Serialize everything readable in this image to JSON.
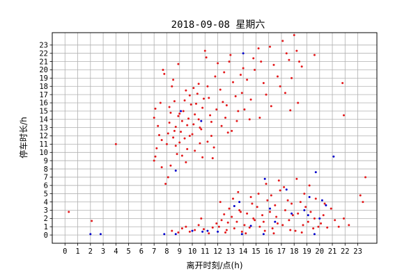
{
  "chart_data": {
    "type": "scatter",
    "title": "2018-09-08 星期六",
    "xlabel": "离开时刻/点(h)",
    "ylabel": "停车时长/h",
    "xlim": [
      -1.0,
      24.5
    ],
    "ylim": [
      -1.0,
      24.5
    ],
    "xticks": [
      0,
      1,
      2,
      3,
      4,
      5,
      6,
      7,
      8,
      9,
      10,
      11,
      12,
      13,
      14,
      15,
      16,
      17,
      18,
      19,
      20,
      21,
      22,
      23
    ],
    "yticks": [
      0,
      1,
      2,
      3,
      4,
      5,
      6,
      7,
      8,
      9,
      10,
      11,
      12,
      13,
      14,
      15,
      16,
      17,
      18,
      19,
      20,
      21,
      22,
      23
    ],
    "grid": true,
    "legend": "none",
    "series": [
      {
        "color": "#e41a1c",
        "points": [
          [
            0.3,
            2.8
          ],
          [
            2.1,
            1.7
          ],
          [
            4.0,
            11.0
          ],
          [
            7.0,
            9.0
          ],
          [
            7.1,
            9.5
          ],
          [
            7.2,
            10.5
          ],
          [
            7.0,
            14.2
          ],
          [
            7.1,
            15.3
          ],
          [
            7.3,
            13.2
          ],
          [
            7.4,
            12.1
          ],
          [
            7.5,
            16.0
          ],
          [
            7.6,
            11.5
          ],
          [
            7.7,
            20.0
          ],
          [
            7.8,
            19.5
          ],
          [
            7.9,
            6.2
          ],
          [
            7.6,
            8.2
          ],
          [
            8.0,
            11.0
          ],
          [
            8.1,
            12.3
          ],
          [
            8.2,
            13.6
          ],
          [
            8.3,
            14.8
          ],
          [
            8.4,
            18.0
          ],
          [
            8.5,
            18.8
          ],
          [
            8.6,
            16.2
          ],
          [
            8.7,
            10.8
          ],
          [
            8.8,
            9.8
          ],
          [
            8.9,
            20.7
          ],
          [
            8.1,
            7.0
          ],
          [
            8.3,
            8.4
          ],
          [
            8.5,
            11.8
          ],
          [
            8.7,
            13.1
          ],
          [
            8.9,
            14.4
          ],
          [
            8.2,
            15.5
          ],
          [
            8.6,
            12.6
          ],
          [
            9.0,
            11.2
          ],
          [
            9.1,
            12.5
          ],
          [
            9.2,
            13.8
          ],
          [
            9.3,
            15.0
          ],
          [
            9.4,
            16.3
          ],
          [
            9.5,
            17.5
          ],
          [
            9.6,
            10.4
          ],
          [
            9.7,
            14.1
          ],
          [
            9.8,
            12.0
          ],
          [
            9.9,
            15.8
          ],
          [
            9.2,
            9.6
          ],
          [
            9.4,
            11.7
          ],
          [
            9.6,
            13.3
          ],
          [
            9.8,
            16.9
          ],
          [
            9.0,
            14.7
          ],
          [
            9.5,
            8.8
          ],
          [
            10.0,
            12.2
          ],
          [
            10.1,
            13.4
          ],
          [
            10.2,
            14.6
          ],
          [
            10.3,
            15.9
          ],
          [
            10.4,
            17.1
          ],
          [
            10.5,
            18.3
          ],
          [
            10.6,
            11.1
          ],
          [
            10.7,
            12.8
          ],
          [
            10.8,
            9.4
          ],
          [
            10.9,
            16.5
          ],
          [
            10.2,
            10.2
          ],
          [
            10.5,
            14.0
          ],
          [
            10.8,
            15.4
          ],
          [
            10.1,
            17.8
          ],
          [
            10.6,
            13.0
          ],
          [
            11.0,
            22.3
          ],
          [
            11.1,
            21.5
          ],
          [
            11.2,
            18.0
          ],
          [
            11.3,
            16.6
          ],
          [
            11.4,
            14.5
          ],
          [
            11.5,
            12.0
          ],
          [
            11.6,
            9.3
          ],
          [
            11.8,
            19.2
          ],
          [
            11.9,
            15.2
          ],
          [
            11.2,
            11.3
          ],
          [
            11.5,
            13.7
          ],
          [
            11.7,
            10.6
          ],
          [
            12.0,
            20.8
          ],
          [
            12.2,
            17.6
          ],
          [
            12.4,
            16.1
          ],
          [
            12.6,
            14.2
          ],
          [
            12.8,
            12.4
          ],
          [
            12.5,
            19.7
          ],
          [
            12.9,
            21.0
          ],
          [
            12.3,
            13.2
          ],
          [
            12.7,
            15.7
          ],
          [
            13.0,
            21.8
          ],
          [
            13.2,
            18.5
          ],
          [
            13.4,
            16.8
          ],
          [
            13.6,
            15.0
          ],
          [
            13.8,
            19.4
          ],
          [
            13.1,
            12.6
          ],
          [
            13.5,
            13.8
          ],
          [
            13.9,
            17.2
          ],
          [
            14.0,
            20.2
          ],
          [
            14.3,
            18.8
          ],
          [
            14.6,
            16.4
          ],
          [
            14.8,
            21.4
          ],
          [
            14.1,
            15.2
          ],
          [
            14.5,
            14.0
          ],
          [
            14.9,
            20.0
          ],
          [
            15.2,
            22.6
          ],
          [
            15.4,
            21.0
          ],
          [
            15.6,
            18.4
          ],
          [
            15.3,
            14.2
          ],
          [
            15.8,
            17.0
          ],
          [
            16.1,
            22.8
          ],
          [
            16.4,
            20.6
          ],
          [
            16.7,
            19.2
          ],
          [
            16.9,
            18.0
          ],
          [
            16.2,
            15.6
          ],
          [
            17.1,
            23.5
          ],
          [
            17.4,
            22.0
          ],
          [
            17.6,
            21.2
          ],
          [
            17.8,
            19.0
          ],
          [
            17.3,
            17.2
          ],
          [
            17.7,
            15.1
          ],
          [
            18.0,
            24.2
          ],
          [
            18.2,
            22.3
          ],
          [
            18.4,
            21.0
          ],
          [
            18.6,
            20.4
          ],
          [
            18.3,
            16.0
          ],
          [
            19.6,
            21.8
          ],
          [
            21.8,
            18.4
          ],
          [
            21.9,
            14.5
          ],
          [
            23.2,
            4.8
          ],
          [
            23.4,
            4.0
          ],
          [
            23.6,
            7.0
          ],
          [
            8.4,
            0.5
          ],
          [
            8.9,
            0.3
          ],
          [
            9.2,
            0.8
          ],
          [
            9.5,
            1.0
          ],
          [
            9.8,
            0.4
          ],
          [
            10.2,
            0.6
          ],
          [
            10.5,
            1.2
          ],
          [
            10.9,
            0.7
          ],
          [
            11.3,
            0.2
          ],
          [
            11.6,
            0.9
          ],
          [
            11.9,
            1.4
          ],
          [
            10.7,
            2.0
          ],
          [
            12.1,
            1.0
          ],
          [
            12.3,
            1.8
          ],
          [
            12.5,
            2.5
          ],
          [
            12.7,
            0.6
          ],
          [
            12.9,
            3.2
          ],
          [
            12.2,
            4.0
          ],
          [
            12.6,
            0.3
          ],
          [
            12.8,
            1.5
          ],
          [
            13.1,
            2.2
          ],
          [
            13.3,
            0.8
          ],
          [
            13.5,
            1.6
          ],
          [
            13.7,
            3.0
          ],
          [
            13.9,
            0.4
          ],
          [
            13.2,
            4.4
          ],
          [
            13.6,
            5.2
          ],
          [
            13.8,
            2.8
          ],
          [
            14.1,
            1.2
          ],
          [
            14.3,
            2.6
          ],
          [
            14.5,
            0.9
          ],
          [
            14.7,
            3.8
          ],
          [
            14.9,
            1.8
          ],
          [
            14.2,
            0.2
          ],
          [
            14.6,
            4.6
          ],
          [
            14.8,
            2.0
          ],
          [
            15.1,
            3.4
          ],
          [
            15.3,
            1.0
          ],
          [
            15.5,
            2.4
          ],
          [
            15.7,
            0.5
          ],
          [
            15.9,
            4.2
          ],
          [
            15.2,
            5.0
          ],
          [
            15.6,
            1.6
          ],
          [
            15.8,
            6.2
          ],
          [
            16.1,
            2.8
          ],
          [
            16.3,
            0.8
          ],
          [
            16.5,
            3.6
          ],
          [
            16.7,
            1.4
          ],
          [
            16.9,
            5.4
          ],
          [
            16.2,
            4.8
          ],
          [
            16.6,
            2.2
          ],
          [
            16.8,
            6.6
          ],
          [
            16.4,
            0.2
          ],
          [
            17.1,
            1.2
          ],
          [
            17.3,
            3.0
          ],
          [
            17.5,
            4.2
          ],
          [
            17.7,
            0.6
          ],
          [
            17.9,
            2.4
          ],
          [
            17.2,
            5.8
          ],
          [
            17.6,
            1.8
          ],
          [
            17.8,
            3.8
          ],
          [
            18.1,
            0.5
          ],
          [
            18.3,
            2.6
          ],
          [
            18.5,
            4.0
          ],
          [
            18.7,
            1.2
          ],
          [
            18.9,
            3.4
          ],
          [
            18.2,
            6.8
          ],
          [
            18.6,
            0.3
          ],
          [
            18.8,
            5.0
          ],
          [
            19.1,
            1.6
          ],
          [
            19.3,
            2.8
          ],
          [
            19.5,
            0.8
          ],
          [
            19.7,
            4.4
          ],
          [
            19.9,
            1.0
          ],
          [
            19.2,
            6.0
          ],
          [
            19.6,
            2.0
          ],
          [
            20.1,
            1.4
          ],
          [
            20.3,
            2.4
          ],
          [
            20.6,
            0.9
          ],
          [
            20.9,
            3.2
          ],
          [
            21.2,
            1.8
          ],
          [
            21.5,
            1.0
          ],
          [
            21.9,
            2.0
          ],
          [
            22.3,
            1.2
          ],
          [
            20.4,
            3.8
          ]
        ]
      },
      {
        "color": "#0000cc",
        "points": [
          [
            2.0,
            0.1
          ],
          [
            2.8,
            0.1
          ],
          [
            7.8,
            0.1
          ],
          [
            8.7,
            7.8
          ],
          [
            8.7,
            0.1
          ],
          [
            9.1,
            15.0
          ],
          [
            10.0,
            0.5
          ],
          [
            10.8,
            0.4
          ],
          [
            10.7,
            13.8
          ],
          [
            11.2,
            0.5
          ],
          [
            12.0,
            0.4
          ],
          [
            13.3,
            3.5
          ],
          [
            13.7,
            4.0
          ],
          [
            14.0,
            22.0
          ],
          [
            13.9,
            0.1
          ],
          [
            14.6,
            1.1
          ],
          [
            15.7,
            6.8
          ],
          [
            15.6,
            0.1
          ],
          [
            16.1,
            3.2
          ],
          [
            16.5,
            1.6
          ],
          [
            17.4,
            5.5
          ],
          [
            17.8,
            2.6
          ],
          [
            18.8,
            3.0
          ],
          [
            19.1,
            2.4
          ],
          [
            19.2,
            4.6
          ],
          [
            19.6,
            0.1
          ],
          [
            19.7,
            7.6
          ],
          [
            20.0,
            2.0
          ],
          [
            20.2,
            4.2
          ],
          [
            20.5,
            3.6
          ],
          [
            21.1,
            9.5
          ]
        ]
      }
    ]
  }
}
